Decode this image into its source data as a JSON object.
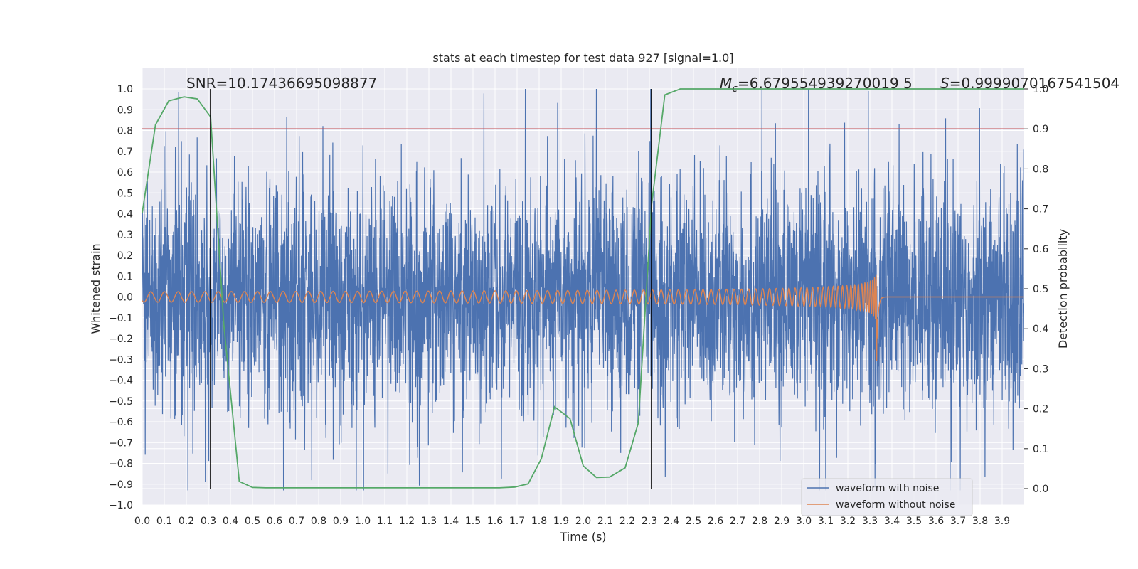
{
  "chart_data": {
    "type": "line",
    "title": "stats at each timestep for test data 927 [signal=1.0]",
    "xlabel": "Time (s)",
    "ylabel": "Whitened strain",
    "y2label": "Detection probability",
    "xlim": [
      0.0,
      4.0
    ],
    "ylim": [
      -1.0,
      1.0
    ],
    "y2lim": [
      -0.05,
      1.0
    ],
    "xticks": [
      0.0,
      0.1,
      0.2,
      0.3,
      0.4,
      0.5,
      0.6,
      0.7,
      0.8,
      0.9,
      1.0,
      1.1,
      1.2,
      1.3,
      1.4,
      1.5,
      1.6,
      1.7,
      1.8,
      1.9,
      2.0,
      2.1,
      2.2,
      2.3,
      2.4,
      2.5,
      2.6,
      2.7,
      2.8,
      2.9,
      3.0,
      3.1,
      3.2,
      3.3,
      3.4,
      3.5,
      3.6,
      3.7,
      3.8,
      3.9
    ],
    "xtick_labels": [
      "0.0",
      "0.1",
      "0.2",
      "0.3",
      "0.4",
      "0.5",
      "0.6",
      "0.7",
      "0.8",
      "0.9",
      "1.0",
      "1.1",
      "1.2",
      "1.3",
      "1.4",
      "1.5",
      "1.6",
      "1.7",
      "1.8",
      "1.9",
      "2.0",
      "2.1",
      "2.2",
      "2.3",
      "2.4",
      "2.5",
      "2.6",
      "2.7",
      "2.8",
      "2.9",
      "3.0",
      "3.1",
      "3.2",
      "3.3",
      "3.4",
      "3.5",
      "3.6",
      "3.7",
      "3.8",
      "3.9"
    ],
    "yticks": [
      -1.0,
      -0.9,
      -0.8,
      -0.7,
      -0.6,
      -0.5,
      -0.4,
      -0.3,
      -0.2,
      -0.1,
      0.0,
      0.1,
      0.2,
      0.3,
      0.4,
      0.5,
      0.6,
      0.7,
      0.8,
      0.9,
      1.0
    ],
    "ytick_labels": [
      "−1.0",
      "−0.9",
      "−0.8",
      "−0.7",
      "−0.6",
      "−0.5",
      "−0.4",
      "−0.3",
      "−0.2",
      "−0.1",
      "0.0",
      "0.1",
      "0.2",
      "0.3",
      "0.4",
      "0.5",
      "0.6",
      "0.7",
      "0.8",
      "0.9",
      "1.0"
    ],
    "y2ticks": [
      0.0,
      0.1,
      0.2,
      0.3,
      0.4,
      0.5,
      0.6,
      0.7,
      0.8,
      0.9,
      1.0
    ],
    "y2tick_labels": [
      "0.0",
      "0.1",
      "0.2",
      "0.3",
      "0.4",
      "0.5",
      "0.6",
      "0.7",
      "0.8",
      "0.9",
      "1.0"
    ],
    "series": [
      {
        "name": "waveform with noise",
        "axis": "left",
        "color": "#4c72b0",
        "description_values": {
          "approx_range": [
            -0.9,
            1.0
          ],
          "samples": 4096,
          "seed": 927
        }
      },
      {
        "name": "waveform without noise",
        "axis": "left",
        "color": "#dd8452",
        "chirp": {
          "start_amplitude": 0.025,
          "peak_amplitude": 0.22,
          "peak_min": -0.37,
          "merger_time": 3.33,
          "ringdown_end": 3.36,
          "start_freq_hz": 16,
          "end_freq_hz": 90
        }
      },
      {
        "name": "detection probability",
        "axis": "right",
        "color": "#55a868",
        "x": [
          0.0,
          0.06,
          0.12,
          0.19,
          0.25,
          0.31,
          0.37,
          0.44,
          0.5,
          0.56,
          0.62,
          0.69,
          0.75,
          0.81,
          0.87,
          0.94,
          1.0,
          1.06,
          1.12,
          1.19,
          1.25,
          1.31,
          1.37,
          1.44,
          1.5,
          1.56,
          1.62,
          1.69,
          1.75,
          1.81,
          1.87,
          1.94,
          2.0,
          2.06,
          2.12,
          2.19,
          2.25,
          2.31,
          2.37,
          2.44,
          2.5,
          2.56,
          2.62,
          2.69,
          2.75,
          2.81,
          2.87,
          2.94,
          3.0,
          3.06,
          3.12,
          3.19,
          3.25,
          3.31,
          3.37,
          3.44,
          3.5,
          3.56,
          3.62,
          3.69,
          3.75,
          3.81,
          3.87,
          3.94,
          4.0
        ],
        "values": [
          0.69,
          0.91,
          0.97,
          0.98,
          0.975,
          0.93,
          0.41,
          0.018,
          0.003,
          0.002,
          0.002,
          0.002,
          0.002,
          0.002,
          0.002,
          0.002,
          0.002,
          0.002,
          0.002,
          0.002,
          0.002,
          0.002,
          0.002,
          0.002,
          0.002,
          0.002,
          0.002,
          0.004,
          0.012,
          0.075,
          0.205,
          0.175,
          0.057,
          0.028,
          0.029,
          0.052,
          0.165,
          0.71,
          0.985,
          1.0,
          1.0,
          1.0,
          1.0,
          1.0,
          1.0,
          1.0,
          1.0,
          1.0,
          1.0,
          1.0,
          1.0,
          1.0,
          1.0,
          1.0,
          1.0,
          1.0,
          1.0,
          1.0,
          1.0,
          1.0,
          1.0,
          1.0,
          1.0,
          1.0,
          1.0
        ]
      }
    ],
    "threshold_line": {
      "axis": "right",
      "value": 0.9,
      "color": "#c44e52"
    },
    "vertical_lines": [
      {
        "x": 0.31,
        "color": "#000000"
      },
      {
        "x": 2.31,
        "color": "#000000"
      }
    ],
    "annotations": {
      "snr": "SNR=10.17436695098877",
      "mc_symbol": "M",
      "mc_sub": "c",
      "mc_value": "=6.679554939270019 5",
      "s_symbol": "S",
      "s_value": "=0.9999070167541504"
    },
    "legend": {
      "position": "lower-right",
      "entries": [
        "waveform with noise",
        "waveform without noise"
      ]
    },
    "grid": true
  }
}
